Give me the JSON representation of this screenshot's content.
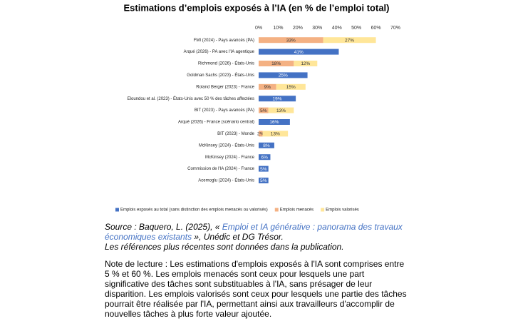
{
  "chart_data": {
    "type": "bar",
    "orientation": "horizontal",
    "stacked": true,
    "title": "Estimations d’emplois exposés à l’IA (en % de l’emploi total)",
    "categories": [
      "FMI (2024) - Pays avancés (PA)",
      "Arqué (2026) - PA avec l'IA agentique",
      "Richmond (2026) - États-Unis",
      "Goldman Sachs (2023) - États-Unis",
      "Roland Berger (2023) - France",
      "Eloundou et al. (2023) - États-Unis avec 50 % des tâches affectées",
      "BIT (2023) - Pays avancés (PA)",
      "Arqué (2026) - France (scénario central)",
      "BIT (2023) - Monde",
      "McKinsey (2024) - États-Unis",
      "McKinsey (2024) - France",
      "Commission de l'IA (2024) - France",
      "Acemoglu (2024) - États-Unis"
    ],
    "series": [
      {
        "name": "Emplois exposés au total (sans distinction des emplois menacés ou valorisés)",
        "color": "#4472c4",
        "values": [
          null,
          41,
          null,
          25,
          null,
          19,
          null,
          16,
          null,
          8,
          6,
          5,
          5
        ],
        "value_labels": [
          null,
          "41%",
          null,
          "25%",
          null,
          "19%",
          null,
          "16%",
          null,
          "8%",
          "6%",
          "5%",
          "5%"
        ]
      },
      {
        "name": "Emplois menacés",
        "color": "#f4b183",
        "values": [
          33,
          null,
          18,
          null,
          9,
          null,
          5,
          null,
          2,
          null,
          null,
          null,
          null
        ],
        "value_labels": [
          "33%",
          null,
          "18%",
          null,
          "9%",
          null,
          "5%",
          null,
          "2%",
          null,
          null,
          null,
          null
        ]
      },
      {
        "name": "Emplois valorisés",
        "color": "#ffe699",
        "values": [
          27,
          null,
          12,
          null,
          15,
          null,
          13,
          null,
          13,
          null,
          null,
          null,
          null
        ],
        "value_labels": [
          "27%",
          null,
          "12%",
          null,
          "15%",
          null,
          "13%",
          null,
          "13%",
          null,
          null,
          null,
          null
        ]
      }
    ],
    "xlim": [
      0,
      70
    ],
    "xticks": [
      {
        "value": 0,
        "label": "0%"
      },
      {
        "value": 10,
        "label": "10%"
      },
      {
        "value": 20,
        "label": "20%"
      },
      {
        "value": 30,
        "label": "30%"
      },
      {
        "value": 40,
        "label": "40%"
      },
      {
        "value": 50,
        "label": "50%"
      },
      {
        "value": 60,
        "label": "60%"
      },
      {
        "value": 70,
        "label": "70%"
      }
    ],
    "legend": "bottom"
  },
  "source": {
    "prefix": "Source : Baquero, L. (2025), « ",
    "link": "Emploi et IA générative : panorama des travaux économiques existants",
    "suffix": " », Unédic et DG Trésor.",
    "note": "Les références plus récentes sont données dans la publication."
  },
  "reading_note": "Note de lecture : Les estimations d'emplois exposés à l'IA sont comprises entre 5 % et 60 %. Les emplois menacés sont ceux pour lesquels une part significative des tâches sont substituables à l'IA, sans présager de leur disparition. Les emplois valorisés sont ceux pour lesquels une partie des tâches pourrait être réalisée par l'IA, permettant ainsi aux travailleurs d'accomplir de nouvelles tâches à plus forte valeur ajoutée."
}
